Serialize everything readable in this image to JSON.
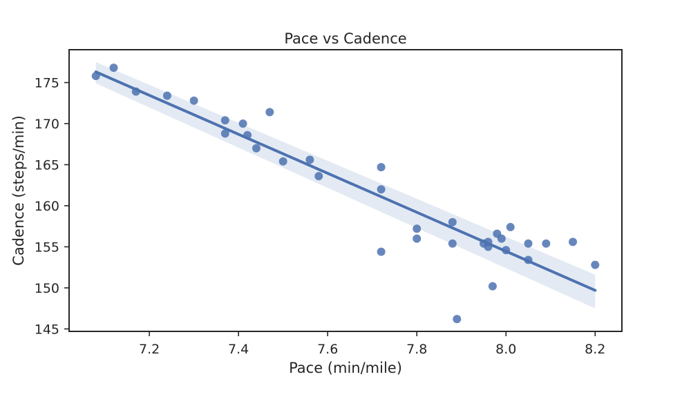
{
  "chart_data": {
    "type": "scatter",
    "title": "Pace vs Cadence",
    "xlabel": "Pace (min/mile)",
    "ylabel": "Cadence (steps/min)",
    "xlim": [
      7.02,
      8.26
    ],
    "ylim": [
      144.7,
      179.0
    ],
    "xticks": [
      7.2,
      7.4,
      7.6,
      7.8,
      8.0,
      8.2
    ],
    "yticks": [
      145,
      150,
      155,
      160,
      165,
      170,
      175
    ],
    "grid": false,
    "colors": {
      "points": "#4c72b0",
      "fit_line": "#4c72b0",
      "confidence_band": "#4c72b0"
    },
    "series": [
      {
        "points": [
          {
            "x": 7.08,
            "y": 175.8
          },
          {
            "x": 7.12,
            "y": 176.8
          },
          {
            "x": 7.17,
            "y": 173.9
          },
          {
            "x": 7.24,
            "y": 173.4
          },
          {
            "x": 7.3,
            "y": 172.8
          },
          {
            "x": 7.37,
            "y": 170.4
          },
          {
            "x": 7.37,
            "y": 168.8
          },
          {
            "x": 7.41,
            "y": 170.0
          },
          {
            "x": 7.42,
            "y": 168.6
          },
          {
            "x": 7.44,
            "y": 167.0
          },
          {
            "x": 7.47,
            "y": 171.4
          },
          {
            "x": 7.5,
            "y": 165.4
          },
          {
            "x": 7.56,
            "y": 165.6
          },
          {
            "x": 7.58,
            "y": 163.6
          },
          {
            "x": 7.72,
            "y": 164.7
          },
          {
            "x": 7.72,
            "y": 162.0
          },
          {
            "x": 7.72,
            "y": 154.4
          },
          {
            "x": 7.8,
            "y": 157.2
          },
          {
            "x": 7.8,
            "y": 156.0
          },
          {
            "x": 7.88,
            "y": 158.0
          },
          {
            "x": 7.88,
            "y": 155.4
          },
          {
            "x": 7.89,
            "y": 146.2
          },
          {
            "x": 7.95,
            "y": 155.4
          },
          {
            "x": 7.96,
            "y": 155.6
          },
          {
            "x": 7.96,
            "y": 155.0
          },
          {
            "x": 7.97,
            "y": 150.2
          },
          {
            "x": 7.98,
            "y": 156.6
          },
          {
            "x": 7.99,
            "y": 156.0
          },
          {
            "x": 8.0,
            "y": 154.6
          },
          {
            "x": 8.01,
            "y": 157.4
          },
          {
            "x": 8.05,
            "y": 155.4
          },
          {
            "x": 8.05,
            "y": 153.4
          },
          {
            "x": 8.09,
            "y": 155.4
          },
          {
            "x": 8.15,
            "y": 155.6
          },
          {
            "x": 8.2,
            "y": 152.8
          }
        ]
      }
    ],
    "regression": {
      "x": [
        7.08,
        8.2
      ],
      "y": [
        176.3,
        149.7
      ],
      "ci_lower": [
        174.9,
        147.5
      ],
      "ci_upper": [
        177.5,
        151.6
      ]
    }
  }
}
